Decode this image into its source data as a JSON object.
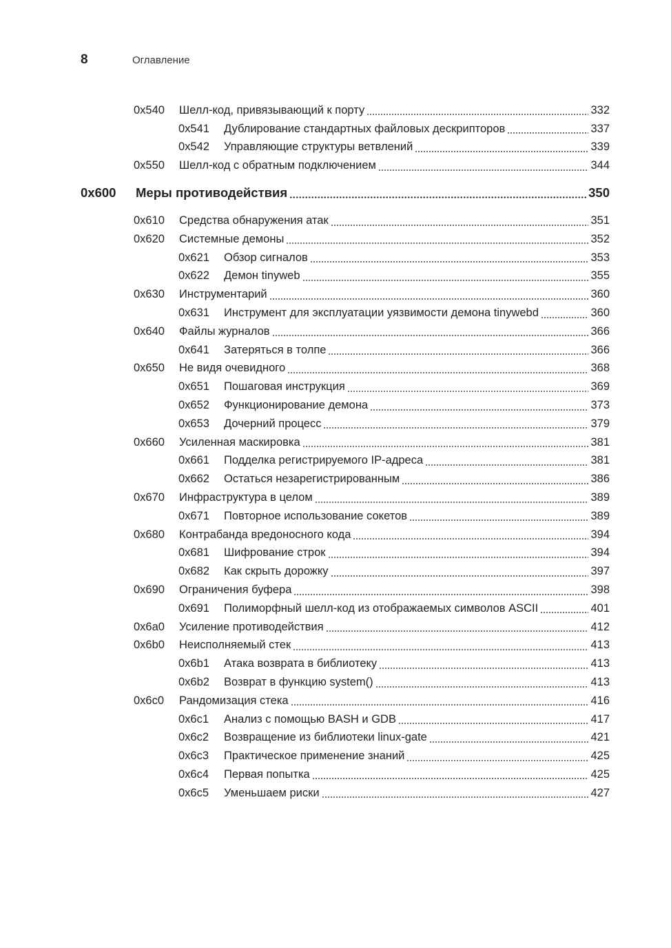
{
  "header": {
    "page_number": "8",
    "running_title": "Оглавление"
  },
  "toc": [
    {
      "level": 1,
      "code": "0x540",
      "title": "Шелл-код, привязывающий к порту",
      "page": "332"
    },
    {
      "level": 2,
      "code": "0x541",
      "title": "Дублирование стандартных файловых дескрипторов",
      "page": "337"
    },
    {
      "level": 2,
      "code": "0x542",
      "title": "Управляющие структуры ветвлений",
      "page": "339"
    },
    {
      "level": 1,
      "code": "0x550",
      "title": "Шелл-код с обратным подключением",
      "page": "344"
    },
    {
      "level": 0,
      "code": "0x600",
      "title": "Меры противодействия",
      "page": "350"
    },
    {
      "level": 1,
      "code": "0x610",
      "title": "Средства обнаружения атак",
      "page": "351"
    },
    {
      "level": 1,
      "code": "0x620",
      "title": "Системные демоны",
      "page": "352"
    },
    {
      "level": 2,
      "code": "0x621",
      "title": "Обзор сигналов",
      "page": "353"
    },
    {
      "level": 2,
      "code": "0x622",
      "title": "Демон tinyweb",
      "page": "355"
    },
    {
      "level": 1,
      "code": "0x630",
      "title": "Инструментарий",
      "page": "360"
    },
    {
      "level": 2,
      "code": "0x631",
      "title": "Инструмент для эксплуатации уязвимости демона tinywebd",
      "page": "360"
    },
    {
      "level": 1,
      "code": "0x640",
      "title": "Файлы журналов",
      "page": "366"
    },
    {
      "level": 2,
      "code": "0x641",
      "title": "Затеряться в толпе",
      "page": "366"
    },
    {
      "level": 1,
      "code": "0x650",
      "title": "Не видя очевидного",
      "page": "368"
    },
    {
      "level": 2,
      "code": "0x651",
      "title": "Пошаговая инструкция",
      "page": "369"
    },
    {
      "level": 2,
      "code": "0x652",
      "title": "Функционирование демона",
      "page": "373"
    },
    {
      "level": 2,
      "code": "0x653",
      "title": "Дочерний процесс",
      "page": "379"
    },
    {
      "level": 1,
      "code": "0x660",
      "title": "Усиленная маскировка",
      "page": "381"
    },
    {
      "level": 2,
      "code": "0x661",
      "title": "Подделка регистрируемого IP-адреса",
      "page": "381"
    },
    {
      "level": 2,
      "code": "0x662",
      "title": "Остаться незарегистрированным",
      "page": "386"
    },
    {
      "level": 1,
      "code": "0x670",
      "title": "Инфраструктура в целом",
      "page": "389"
    },
    {
      "level": 2,
      "code": "0x671",
      "title": "Повторное использование сокетов",
      "page": "389"
    },
    {
      "level": 1,
      "code": "0x680",
      "title": "Контрабанда вредоносного кода",
      "page": "394"
    },
    {
      "level": 2,
      "code": "0x681",
      "title": "Шифрование строк",
      "page": "394"
    },
    {
      "level": 2,
      "code": "0x682",
      "title": "Как скрыть дорожку",
      "page": "397"
    },
    {
      "level": 1,
      "code": "0x690",
      "title": "Ограничения буфера",
      "page": "398"
    },
    {
      "level": 2,
      "code": "0x691",
      "title": "Полиморфный шелл-код из отображаемых символов ASCII",
      "page": "401"
    },
    {
      "level": 1,
      "code": "0x6a0",
      "title": "Усиление противодействия",
      "page": "412"
    },
    {
      "level": 1,
      "code": "0x6b0",
      "title": "Неисполняемый стек",
      "page": "413"
    },
    {
      "level": 2,
      "code": "0x6b1",
      "title": "Атака возврата в библиотеку",
      "page": "413"
    },
    {
      "level": 2,
      "code": "0x6b2",
      "title": "Возврат в функцию system()",
      "page": "413"
    },
    {
      "level": 1,
      "code": "0x6c0",
      "title": "Рандомизация стека",
      "page": "416"
    },
    {
      "level": 2,
      "code": "0x6c1",
      "title": "Анализ с помощью BASH и GDB",
      "page": "417"
    },
    {
      "level": 2,
      "code": "0x6c2",
      "title": "Возвращение из библиотеки linux-gate",
      "page": "421"
    },
    {
      "level": 2,
      "code": "0x6c3",
      "title": "Практическое применение знаний",
      "page": "425"
    },
    {
      "level": 2,
      "code": "0x6c4",
      "title": "Первая попытка",
      "page": "425"
    },
    {
      "level": 2,
      "code": "0x6c5",
      "title": "Уменьшаем риски",
      "page": "427"
    }
  ]
}
